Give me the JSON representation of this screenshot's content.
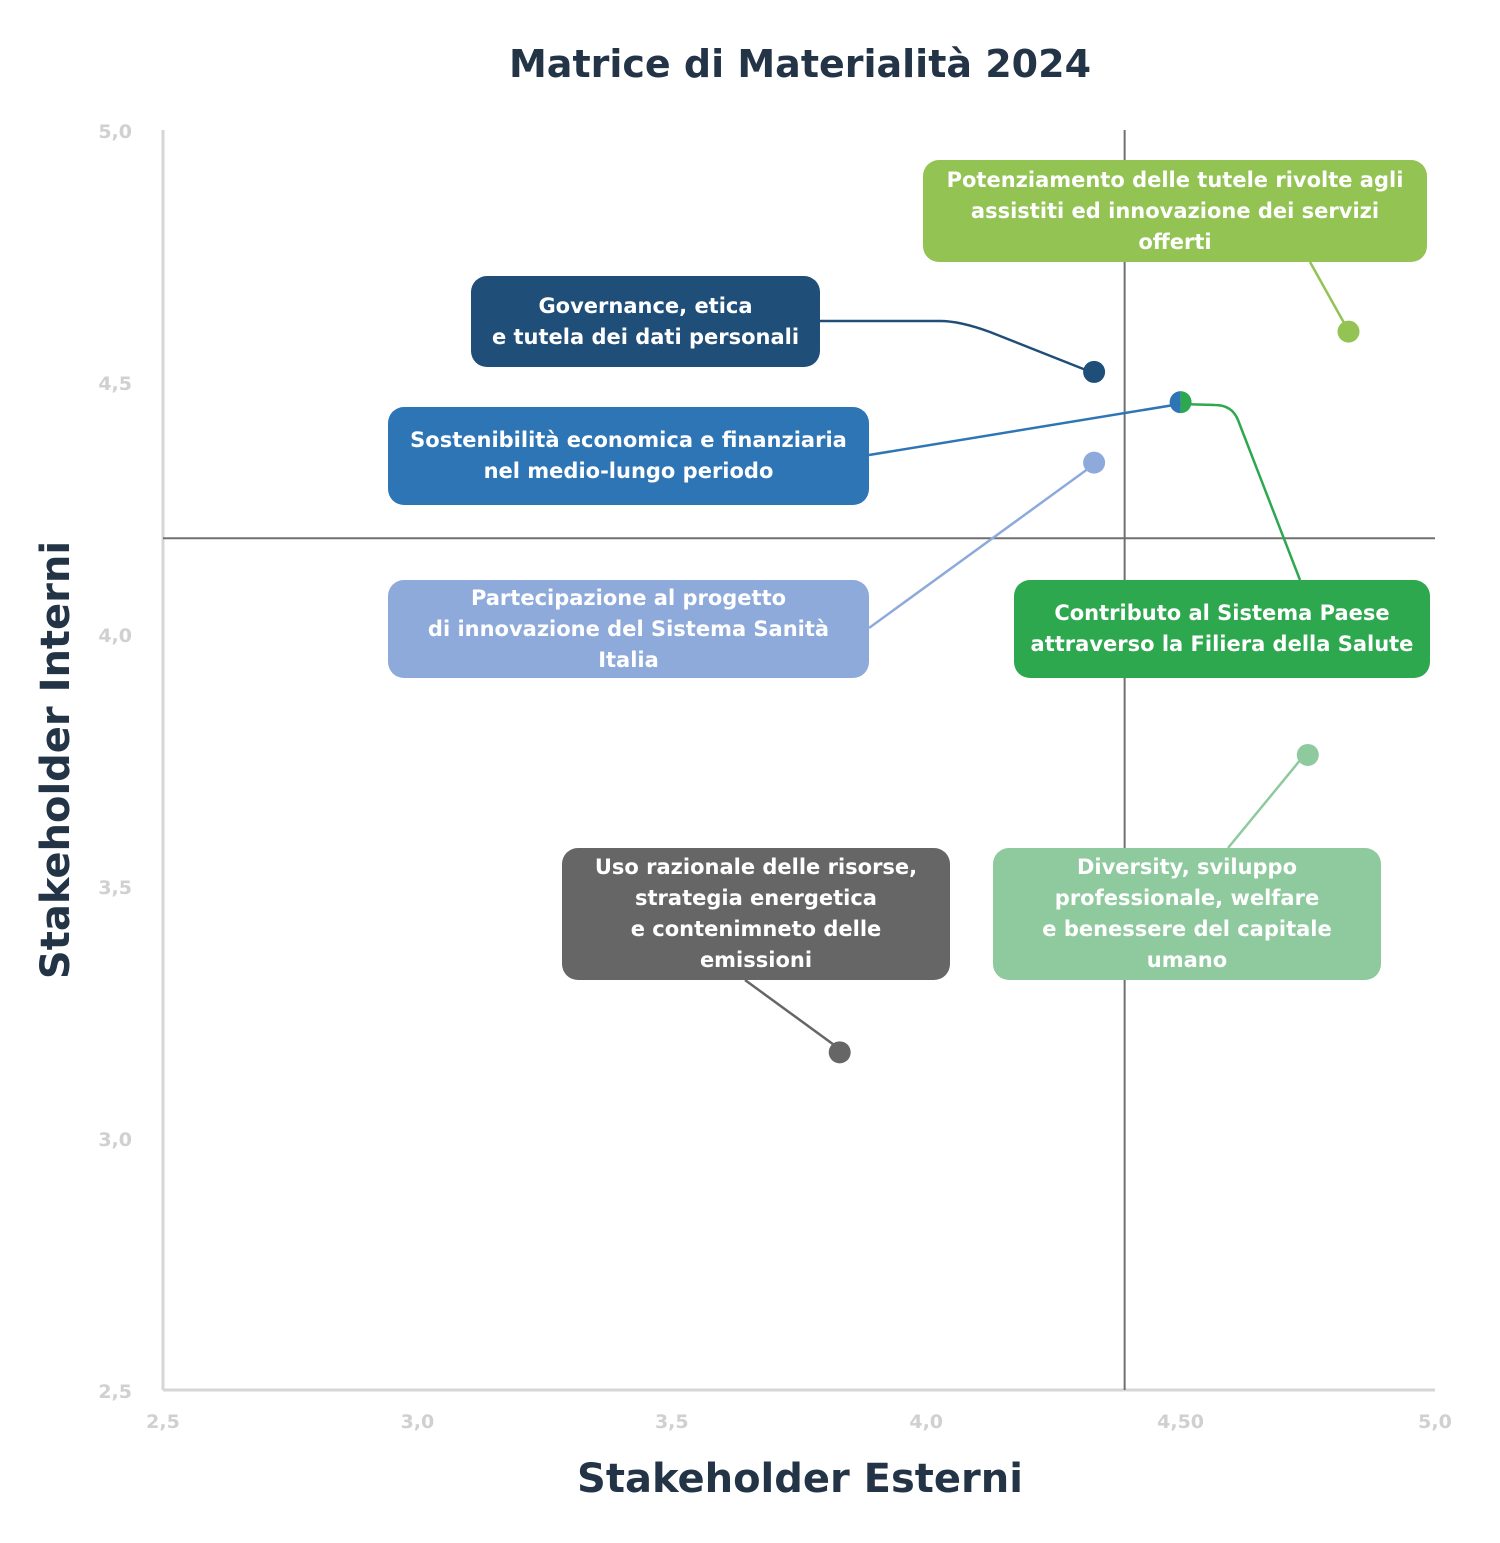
{
  "chart_data": {
    "type": "scatter",
    "title": "Matrice di Materialità 2024",
    "xlabel": "Stakeholder Esterni",
    "ylabel": "Stakeholder Interni",
    "xlim": [
      2.5,
      5.0
    ],
    "ylim": [
      2.5,
      5.0
    ],
    "x_ticks": [
      "2,5",
      "3,0",
      "3,5",
      "4,0",
      "4,50",
      "5,0"
    ],
    "y_ticks": [
      "5,0",
      "4,5",
      "4,0",
      "3,5",
      "3,0",
      "2,5"
    ],
    "quadrant_lines": {
      "x": 4.39,
      "y": 4.19
    },
    "grid": false,
    "points": [
      {
        "label": "Potenziamento delle tutele rivolte agli\nassistiti ed innovazione dei servizi offerti",
        "x": 4.83,
        "y": 4.6,
        "color": "#92c353"
      },
      {
        "label": "Governance, etica\ne tutela dei dati personali",
        "x": 4.33,
        "y": 4.52,
        "color": "#1f4e79"
      },
      {
        "label": "Sostenibilità economica e finanziaria\nnel medio-lungo periodo",
        "x": 4.5,
        "y": 4.46,
        "color": "#2e75b6"
      },
      {
        "label": "Partecipazione al progetto\ndi innovazione del Sistema Sanità Italia",
        "x": 4.33,
        "y": 4.34,
        "color": "#8eaadb"
      },
      {
        "label": "Contributo al Sistema Paese\nattraverso la Filiera della Salute",
        "x": 4.5,
        "y": 4.46,
        "color": "#2ea84f"
      },
      {
        "label": "Uso razionale delle risorse,\nstrategia energetica\ne contenimneto delle emissioni",
        "x": 3.83,
        "y": 3.17,
        "color": "#666666"
      },
      {
        "label": "Diversity, sviluppo\nprofessionale, welfare\ne benessere del capitale umano",
        "x": 4.75,
        "y": 3.76,
        "color": "#8fca9e"
      }
    ]
  }
}
